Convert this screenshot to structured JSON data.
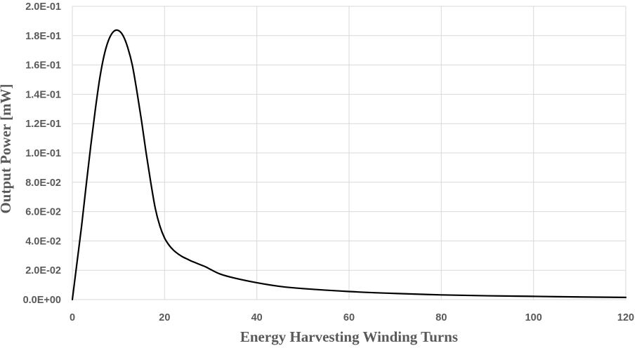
{
  "chart_data": {
    "type": "line",
    "title": "",
    "xlabel": "Energy Harvesting Winding Turns",
    "ylabel": "Output Power [mW]",
    "xlim": [
      0,
      120
    ],
    "ylim": [
      0,
      0.2
    ],
    "x_ticks": [
      0,
      20,
      40,
      60,
      80,
      100,
      120
    ],
    "x_tick_labels": [
      "0",
      "20",
      "40",
      "60",
      "80",
      "100",
      "120"
    ],
    "y_ticks": [
      0,
      0.02,
      0.04,
      0.06,
      0.08,
      0.1,
      0.12,
      0.14,
      0.16,
      0.18,
      0.2
    ],
    "y_tick_labels": [
      "0.0E+00",
      "2.0E-02",
      "4.0E-02",
      "6.0E-02",
      "8.0E-02",
      "1.0E-01",
      "1.2E-01",
      "1.4E-01",
      "1.6E-01",
      "1.8E-01",
      "2.0E-01"
    ],
    "grid": true,
    "legend": "none",
    "series": [
      {
        "color": "#000000",
        "x": [
          0,
          1,
          2,
          3,
          4,
          5,
          6,
          7,
          8,
          9,
          10,
          11,
          12,
          13,
          14,
          15,
          16,
          17,
          18,
          19,
          20,
          21,
          22,
          23,
          24,
          25,
          26,
          28,
          29,
          30,
          32,
          35,
          40,
          45,
          50,
          60,
          70,
          80,
          90,
          100,
          110,
          120
        ],
        "y": [
          0,
          0.025,
          0.05,
          0.078,
          0.105,
          0.13,
          0.152,
          0.168,
          0.178,
          0.183,
          0.1835,
          0.18,
          0.172,
          0.16,
          0.142,
          0.122,
          0.1,
          0.08,
          0.062,
          0.05,
          0.042,
          0.037,
          0.0335,
          0.031,
          0.029,
          0.0275,
          0.026,
          0.0235,
          0.0222,
          0.0205,
          0.0175,
          0.0148,
          0.0115,
          0.009,
          0.0075,
          0.0055,
          0.0042,
          0.0032,
          0.0026,
          0.0022,
          0.0018,
          0.0015
        ]
      }
    ]
  }
}
